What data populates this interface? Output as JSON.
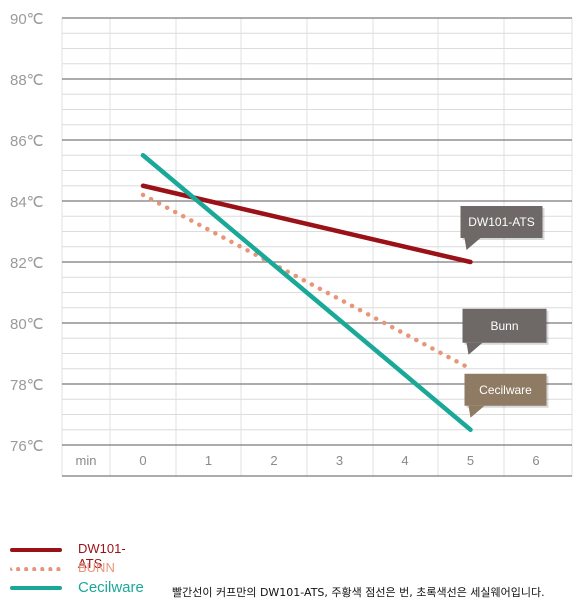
{
  "chart_data": {
    "type": "line",
    "x_axis_label": "min",
    "x_ticks": [
      0,
      1,
      2,
      3,
      4,
      5,
      6
    ],
    "y_ticks": [
      "90℃",
      "88℃",
      "86℃",
      "84℃",
      "82℃",
      "80℃",
      "78℃",
      "76℃"
    ],
    "ylim": [
      76,
      90
    ],
    "xlim": [
      -1,
      6
    ],
    "grid": true,
    "series": [
      {
        "name": "DW101-ATS",
        "color": "#9b1118",
        "style": "solid",
        "points": [
          [
            0,
            84.5
          ],
          [
            5,
            82.0
          ]
        ]
      },
      {
        "name": "BUNN",
        "color": "#e89579",
        "style": "dotted",
        "points": [
          [
            0,
            84.2
          ],
          [
            5,
            78.5
          ]
        ]
      },
      {
        "name": "Cecilware",
        "color": "#1aa898",
        "style": "solid",
        "points": [
          [
            0,
            85.5
          ],
          [
            5,
            76.5
          ]
        ]
      }
    ],
    "callouts": [
      {
        "text": "DW101-ATS",
        "color": "#6e6966"
      },
      {
        "text": "Bunn",
        "color": "#6e6966"
      },
      {
        "text": "Cecilware",
        "color": "#8f7a63"
      }
    ]
  },
  "legend": {
    "items": [
      {
        "label": "DW101-ATS",
        "color": "#9b1118",
        "style": "solid"
      },
      {
        "label": "BUNN",
        "color": "#e89579",
        "style": "dotted"
      },
      {
        "label": "Cecilware",
        "color": "#1aa898",
        "style": "solid"
      }
    ]
  },
  "caption": "빨간선이 커프만의 DW101-ATS, 주황색 점선은 번, 초록색선은 세실웨어입니다."
}
